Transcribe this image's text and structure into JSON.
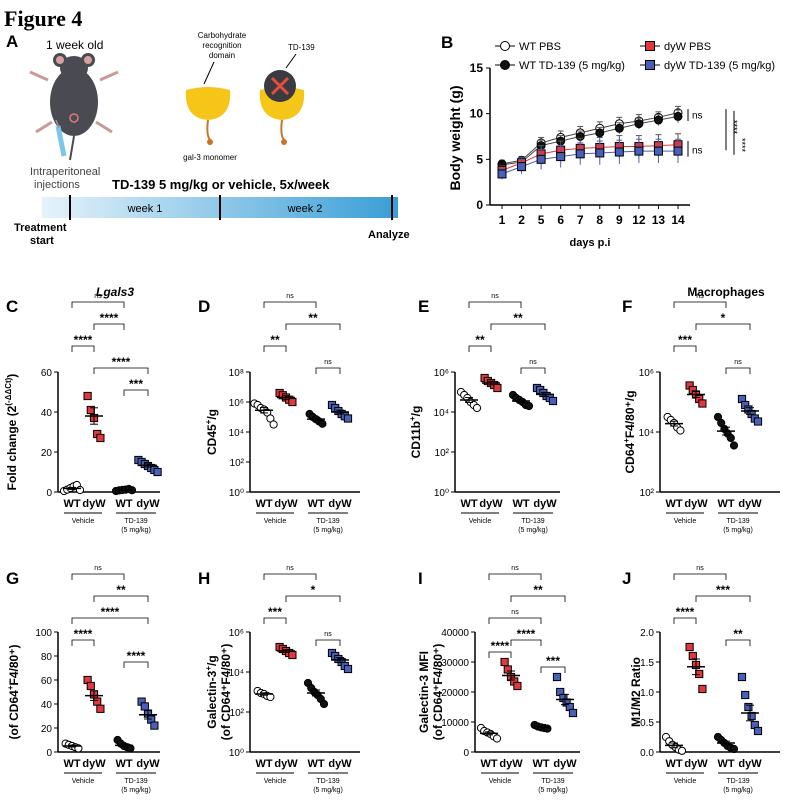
{
  "figure_title": "Figure 4",
  "panel_a": {
    "letter": "A",
    "age_label": "1 week old",
    "injection_label_1": "Intraperitoneal",
    "injection_label_2": "injections",
    "crd_label_1": "Carbohydrate",
    "crd_label_2": "recognition",
    "crd_label_3": "domain",
    "drug_label": "TD-139",
    "monomer_label": "gal-3 monomer",
    "regimen": "TD-139 5 mg/kg or vehicle, 5x/week",
    "week1": "week 1",
    "week2": "week 2",
    "start_1": "Treatment",
    "start_2": "start",
    "end": "Analyze",
    "colors": {
      "mouse": "#4a4a52",
      "ear": "#d9a0a0",
      "gal3": "#f5c518",
      "stalk": "#c8742a",
      "block": "#e74c3c",
      "timeline_light": "#d7ecf9",
      "timeline_dark": "#3aa0d8"
    }
  },
  "group_labels": {
    "wt": "WT",
    "dyw": "dyW",
    "vehicle": "Vehicle",
    "td139_1": "TD-139",
    "td139_2": "(5 mg/kg)"
  },
  "colors": {
    "wt_pbs": "#ffffff",
    "wt_td": "#111111",
    "dyw_pbs": "#e0383e",
    "dyw_td": "#4a5fb8"
  },
  "chart_data": [
    {
      "panel": "B",
      "type": "line",
      "xlabel": "days p.i",
      "ylabel": "Body weight (g)",
      "ylim": [
        0,
        15
      ],
      "yticks": [
        0,
        5,
        10,
        15
      ],
      "categories": [
        "1",
        "2",
        "5",
        "6",
        "7",
        "8",
        "9",
        "12",
        "13",
        "14"
      ],
      "series": [
        {
          "name": "WT PBS",
          "marker": "open-circle",
          "values": [
            4.5,
            4.9,
            6.8,
            7.4,
            7.9,
            8.4,
            8.9,
            9.2,
            9.6,
            10.1
          ],
          "err": [
            0.4,
            0.4,
            0.6,
            0.7,
            0.7,
            0.7,
            0.7,
            0.7,
            0.6,
            0.7
          ]
        },
        {
          "name": "WT TD-139 (5 mg/kg)",
          "marker": "filled-circle",
          "values": [
            4.4,
            4.7,
            6.5,
            7.0,
            7.5,
            7.9,
            8.4,
            8.9,
            9.3,
            9.7
          ],
          "err": [
            0.4,
            0.4,
            0.6,
            0.6,
            0.6,
            0.6,
            0.6,
            0.6,
            0.6,
            0.7
          ]
        },
        {
          "name": "dyW PBS",
          "marker": "red-square",
          "values": [
            3.8,
            4.6,
            5.6,
            6.0,
            6.2,
            6.3,
            6.4,
            6.4,
            6.5,
            6.6
          ],
          "err": [
            0.5,
            0.6,
            0.9,
            1.0,
            1.1,
            1.1,
            1.2,
            1.2,
            1.2,
            1.2
          ]
        },
        {
          "name": "dyW TD-139 (5 mg/kg)",
          "marker": "blue-square",
          "values": [
            3.4,
            4.2,
            5.0,
            5.3,
            5.6,
            5.7,
            5.8,
            5.9,
            5.9,
            5.9
          ],
          "err": [
            0.6,
            0.8,
            1.1,
            1.2,
            1.2,
            1.3,
            1.3,
            1.3,
            1.3,
            1.3
          ]
        }
      ],
      "annotations": [
        "ns",
        "ns",
        "****",
        "****"
      ]
    },
    {
      "panel": "C",
      "type": "scatter",
      "title": "Lgals3",
      "ylabel": "Fold change (2",
      "ylabel_sup": "(-ΔΔCt)",
      "ylabel_end": ")",
      "scale": "linear",
      "ylim": [
        0,
        60
      ],
      "yticks": [
        "0",
        "20",
        "40",
        "60"
      ],
      "groups": [
        {
          "name": "WT Vehicle",
          "values": [
            0.5,
            1.2,
            2.0,
            2.8,
            3.5,
            1.0
          ]
        },
        {
          "name": "dyW Vehicle",
          "values": [
            48,
            41,
            37,
            29,
            27
          ]
        },
        {
          "name": "WT TD-139",
          "values": [
            0.5,
            0.8,
            1.0,
            1.2,
            1.5,
            0.9
          ]
        },
        {
          "name": "dyW TD-139",
          "values": [
            16,
            15,
            14,
            13,
            12,
            11,
            10
          ]
        }
      ],
      "means": [
        1.8,
        38,
        1.0,
        13.3
      ],
      "sems": [
        0.5,
        4.1,
        0.2,
        0.8
      ],
      "brackets": [
        {
          "a": 0,
          "b": 2,
          "label": "ns"
        },
        {
          "a": 1,
          "b": 2,
          "label": "****"
        },
        {
          "a": 0,
          "b": 1,
          "label": "****"
        },
        {
          "a": 1,
          "b": 3,
          "label": "****"
        },
        {
          "a": 2,
          "b": 3,
          "label": "***"
        }
      ]
    },
    {
      "panel": "D",
      "type": "scatter",
      "ylabel": "CD45",
      "ylabel_sup": "+",
      "ylabel_end": "/g",
      "scale": "log",
      "ylim": [
        0,
        8
      ],
      "yticks": [
        "10⁰",
        "10²",
        "10⁴",
        "10⁶",
        "10⁸"
      ],
      "groups": [
        {
          "name": "WT Vehicle",
          "values": [
            5.9,
            5.8,
            5.6,
            5.5,
            5.3,
            4.9,
            4.5
          ]
        },
        {
          "name": "dyW Vehicle",
          "values": [
            6.6,
            6.45,
            6.3,
            6.15,
            6.0
          ]
        },
        {
          "name": "WT TD-139",
          "values": [
            5.2,
            5.0,
            4.85,
            4.7,
            4.55
          ]
        },
        {
          "name": "dyW TD-139",
          "values": [
            5.8,
            5.6,
            5.4,
            5.2,
            5.05,
            4.9
          ]
        }
      ],
      "means": [
        5.45,
        6.3,
        4.86,
        5.33
      ],
      "sems": [
        0.18,
        0.12,
        0.12,
        0.13
      ],
      "brackets": [
        {
          "a": 0,
          "b": 2,
          "label": "ns"
        },
        {
          "a": 1,
          "b": 3,
          "label": "**"
        },
        {
          "a": 0,
          "b": 1,
          "label": "**"
        },
        {
          "a": 2,
          "b": 3,
          "label": "ns"
        }
      ]
    },
    {
      "panel": "E",
      "type": "scatter",
      "ylabel": "CD11b",
      "ylabel_sup": "+",
      "ylabel_end": "/g",
      "scale": "log",
      "ylim": [
        0,
        6
      ],
      "yticks": [
        "10⁰",
        "10²",
        "10⁴",
        "10⁶"
      ],
      "groups": [
        {
          "name": "WT Vehicle",
          "values": [
            5.0,
            4.85,
            4.7,
            4.5,
            4.35,
            4.2
          ]
        },
        {
          "name": "dyW Vehicle",
          "values": [
            5.7,
            5.55,
            5.45,
            5.35,
            5.2
          ]
        },
        {
          "name": "WT TD-139",
          "values": [
            4.85,
            4.7,
            4.6,
            4.5,
            4.35,
            4.3
          ]
        },
        {
          "name": "dyW TD-139",
          "values": [
            5.2,
            5.1,
            4.95,
            4.8,
            4.7,
            4.55
          ]
        }
      ],
      "means": [
        4.6,
        5.45,
        4.55,
        4.88
      ],
      "sems": [
        0.12,
        0.09,
        0.08,
        0.1
      ],
      "brackets": [
        {
          "a": 0,
          "b": 2,
          "label": "ns"
        },
        {
          "a": 1,
          "b": 3,
          "label": "**"
        },
        {
          "a": 0,
          "b": 1,
          "label": "**"
        },
        {
          "a": 2,
          "b": 3,
          "label": "ns"
        }
      ]
    },
    {
      "panel": "F",
      "type": "scatter",
      "title": "Macrophages",
      "ylabel": "CD64",
      "ylabel_sup": "+",
      "ylabel_end": "F4/80⁺/g",
      "scale": "log",
      "ylim": [
        2,
        6
      ],
      "yticks": [
        "10²",
        "10⁴",
        "10⁶"
      ],
      "groups": [
        {
          "name": "WT Vehicle",
          "values": [
            4.5,
            4.4,
            4.3,
            4.15,
            4.05
          ]
        },
        {
          "name": "dyW Vehicle",
          "values": [
            5.55,
            5.4,
            5.25,
            5.1,
            4.95
          ]
        },
        {
          "name": "WT TD-139",
          "values": [
            4.5,
            4.3,
            4.1,
            3.95,
            3.8,
            3.55
          ]
        },
        {
          "name": "dyW TD-139",
          "values": [
            5.1,
            4.9,
            4.75,
            4.6,
            4.45,
            4.35
          ]
        }
      ],
      "means": [
        4.28,
        5.25,
        4.03,
        4.7
      ],
      "sems": [
        0.08,
        0.1,
        0.13,
        0.11
      ],
      "brackets": [
        {
          "a": 0,
          "b": 2,
          "label": "ns"
        },
        {
          "a": 1,
          "b": 3,
          "label": "*"
        },
        {
          "a": 0,
          "b": 1,
          "label": "***"
        },
        {
          "a": 2,
          "b": 3,
          "label": "ns"
        }
      ]
    },
    {
      "panel": "G",
      "type": "scatter",
      "ylabel": "(of CD64",
      "ylabel_sup": "+",
      "ylabel_end": "F4/80⁺)",
      "scale": "linear",
      "ylim": [
        0,
        100
      ],
      "yticks": [
        "0",
        "20",
        "40",
        "60",
        "80",
        "100"
      ],
      "groups": [
        {
          "name": "WT Vehicle",
          "values": [
            7,
            6,
            5,
            4,
            3
          ]
        },
        {
          "name": "dyW Vehicle",
          "values": [
            60,
            55,
            48,
            42,
            36
          ]
        },
        {
          "name": "WT TD-139",
          "values": [
            10,
            7,
            5,
            4,
            3
          ]
        },
        {
          "name": "dyW TD-139",
          "values": [
            42,
            38,
            32,
            27,
            22
          ]
        }
      ],
      "means": [
        5,
        47,
        5.5,
        31
      ],
      "sems": [
        0.8,
        4,
        1.2,
        3.5
      ],
      "brackets": [
        {
          "a": 0,
          "b": 2,
          "label": "ns"
        },
        {
          "a": 1,
          "b": 3,
          "label": "**"
        },
        {
          "a": 0,
          "b": 3,
          "label": "****"
        },
        {
          "a": 0,
          "b": 1,
          "label": "****"
        },
        {
          "a": 2,
          "b": 3,
          "label": "****"
        }
      ]
    },
    {
      "panel": "H",
      "type": "scatter",
      "ylabel": "Galectin-3",
      "ylabel_sup": "+",
      "ylabel_end": "/g",
      "ylabel2": "(of CD64⁺F4/80⁺)",
      "scale": "log",
      "ylim": [
        0,
        6
      ],
      "yticks": [
        "10⁰",
        "10²",
        "10⁴",
        "10⁶"
      ],
      "groups": [
        {
          "name": "WT Vehicle",
          "values": [
            3.05,
            2.95,
            2.9,
            2.8,
            2.75
          ]
        },
        {
          "name": "dyW Vehicle",
          "values": [
            5.25,
            5.15,
            5.05,
            4.95,
            4.85
          ]
        },
        {
          "name": "WT TD-139",
          "values": [
            3.45,
            3.2,
            3.0,
            2.85,
            2.65,
            2.4
          ]
        },
        {
          "name": "dyW TD-139",
          "values": [
            4.95,
            4.8,
            4.65,
            4.5,
            4.3,
            4.15
          ]
        }
      ],
      "means": [
        2.9,
        5.05,
        2.95,
        4.6
      ],
      "sems": [
        0.06,
        0.07,
        0.15,
        0.12
      ],
      "brackets": [
        {
          "a": 0,
          "b": 2,
          "label": "ns"
        },
        {
          "a": 1,
          "b": 3,
          "label": "*"
        },
        {
          "a": 0,
          "b": 1,
          "label": "***"
        },
        {
          "a": 2,
          "b": 3,
          "label": "ns"
        }
      ]
    },
    {
      "panel": "I",
      "type": "scatter",
      "ylabel": "Galectin-3 MFI",
      "ylabel2": "(of CD64⁺F4/80⁺)",
      "scale": "linear",
      "ylim": [
        0,
        40000
      ],
      "yticks": [
        "0",
        "10000",
        "20000",
        "30000",
        "40000"
      ],
      "groups": [
        {
          "name": "WT Vehicle",
          "values": [
            8000,
            7000,
            6500,
            6000,
            5200,
            4500
          ]
        },
        {
          "name": "dyW Vehicle",
          "values": [
            30000,
            27500,
            25000,
            23500,
            22000
          ]
        },
        {
          "name": "WT TD-139",
          "values": [
            9000,
            8500,
            8200,
            8000,
            7800
          ]
        },
        {
          "name": "dyW TD-139",
          "values": [
            25000,
            20000,
            18000,
            16500,
            15000,
            13000
          ]
        }
      ],
      "means": [
        6200,
        25500,
        8300,
        17500
      ],
      "sems": [
        500,
        1500,
        200,
        1700
      ],
      "brackets": [
        {
          "a": 0,
          "b": 2,
          "label": "ns"
        },
        {
          "a": 1,
          "b": 3,
          "label": "**"
        },
        {
          "a": 0,
          "b": 2,
          "label": "ns"
        },
        {
          "a": 1,
          "b": 2,
          "label": "****"
        },
        {
          "a": 0,
          "b": 1,
          "label": "****"
        },
        {
          "a": 2,
          "b": 3,
          "label": "***"
        }
      ]
    },
    {
      "panel": "J",
      "type": "scatter",
      "ylabel": "M1/M2 Ratio",
      "scale": "linear",
      "ylim": [
        0,
        2
      ],
      "yticks": [
        "0.0",
        "0.5",
        "1.0",
        "1.5",
        "2.0"
      ],
      "groups": [
        {
          "name": "WT Vehicle",
          "values": [
            0.25,
            0.18,
            0.12,
            0.08,
            0.04,
            0.02
          ]
        },
        {
          "name": "dyW Vehicle",
          "values": [
            1.75,
            1.6,
            1.45,
            1.3,
            1.05
          ]
        },
        {
          "name": "WT TD-139",
          "values": [
            0.25,
            0.2,
            0.15,
            0.1,
            0.07,
            0.05
          ]
        },
        {
          "name": "dyW TD-139",
          "values": [
            1.25,
            0.95,
            0.75,
            0.6,
            0.45,
            0.35
          ]
        }
      ],
      "means": [
        0.11,
        1.42,
        0.15,
        0.65
      ],
      "sems": [
        0.04,
        0.13,
        0.03,
        0.13
      ],
      "brackets": [
        {
          "a": 0,
          "b": 2,
          "label": "ns"
        },
        {
          "a": 1,
          "b": 3,
          "label": "***"
        },
        {
          "a": 0,
          "b": 1,
          "label": "****"
        },
        {
          "a": 2,
          "b": 3,
          "label": "**"
        }
      ]
    }
  ]
}
